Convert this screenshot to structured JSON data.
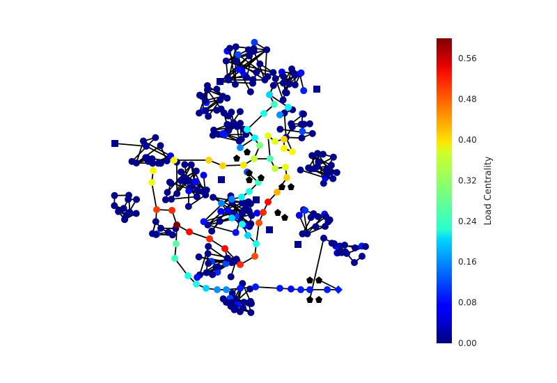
{
  "figure": {
    "type": "network-graph",
    "node_color_metric": "load centrality",
    "colormap": "jet"
  },
  "colorbar": {
    "label": "Load Centrality",
    "min": 0.0,
    "max": 0.6,
    "ticks": [
      "0.00",
      "0.08",
      "0.16",
      "0.24",
      "0.32",
      "0.40",
      "0.48",
      "0.56"
    ],
    "tick_values": [
      0.0,
      0.08,
      0.16,
      0.24,
      0.32,
      0.4,
      0.48,
      0.56
    ]
  },
  "colors": {
    "edge": "#000000",
    "low_node": "#00008b",
    "high_node": "#800000"
  }
}
